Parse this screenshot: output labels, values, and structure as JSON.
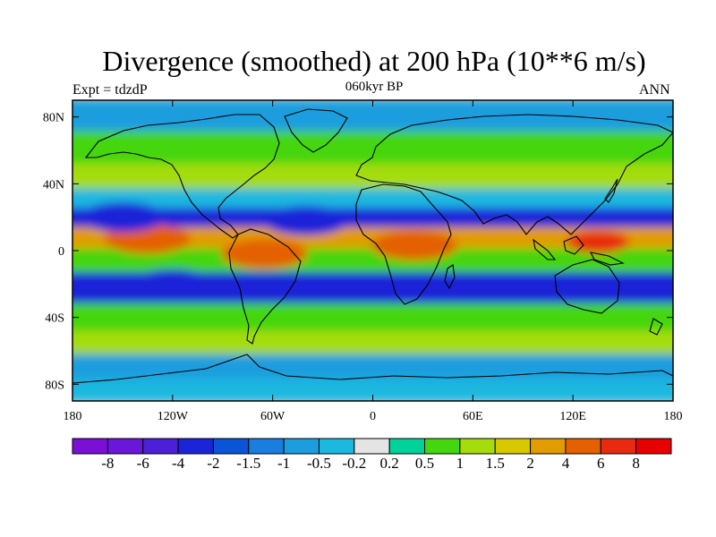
{
  "title": "Divergence (smoothed) at 200 hPa (10**6 m/s)",
  "subtitle_left": "Expt = tdzdP",
  "subtitle_center": "060kyr BP",
  "subtitle_right": "ANN",
  "x_ticks": [
    "180",
    "120W",
    "60W",
    "0",
    "60E",
    "120E",
    "180"
  ],
  "y_ticks": [
    "80N",
    "40N",
    "0",
    "40S",
    "80S"
  ],
  "colorbar": {
    "labels": [
      "-8",
      "-6",
      "-4",
      "-2",
      "-1.5",
      "-1",
      "-0.5",
      "-0.2",
      "0.2",
      "0.5",
      "1",
      "1.5",
      "2",
      "4",
      "6",
      "8"
    ],
    "colors": [
      "#7a0fd6",
      "#6a17d9",
      "#4b20d6",
      "#1c24d8",
      "#0a54d8",
      "#1a7ee0",
      "#1c9ede",
      "#1cb8e0",
      "#e4e4e4",
      "#00d29a",
      "#44d60e",
      "#a4dc0c",
      "#d8c800",
      "#e29c00",
      "#e46000",
      "#e82a10",
      "#e80000"
    ]
  },
  "chart_data": {
    "type": "heatmap",
    "title": "Divergence (smoothed) at 200 hPa (10**6 m/s)",
    "x_range": [
      -180,
      180
    ],
    "y_range": [
      -90,
      90
    ],
    "levels": [
      -8,
      -6,
      -4,
      -2,
      -1.5,
      -1,
      -0.5,
      -0.2,
      0.2,
      0.5,
      1,
      1.5,
      2,
      4,
      6,
      8
    ],
    "bands": [
      {
        "lat": 82,
        "value": -0.7
      },
      {
        "lat": 60,
        "value": 0.6
      },
      {
        "lat": 43,
        "value": 1.0
      },
      {
        "lat": 30,
        "value": -0.4
      },
      {
        "lat": 20,
        "value": -2.5
      },
      {
        "lat": 7,
        "value": 2.0
      },
      {
        "lat": -5,
        "value": 0.7
      },
      {
        "lat": -22,
        "value": -2.5
      },
      {
        "lat": -42,
        "value": 0.8
      },
      {
        "lat": -55,
        "value": 1.0
      },
      {
        "lat": -70,
        "value": -0.6
      },
      {
        "lat": -85,
        "value": -0.3
      }
    ],
    "features": [
      {
        "name": "maritime-continent-max",
        "lon": 135,
        "lat": 5,
        "value": 6
      },
      {
        "name": "amazon-max",
        "lon": -65,
        "lat": -2,
        "value": 4
      },
      {
        "name": "africa-max",
        "lon": 25,
        "lat": 3,
        "value": 4
      },
      {
        "name": "east-pacific-max",
        "lon": -135,
        "lat": 7,
        "value": 4
      },
      {
        "name": "south-atlantic-min",
        "lon": -25,
        "lat": -22,
        "value": -4
      },
      {
        "name": "south-pacific-min",
        "lon": -120,
        "lat": -20,
        "value": -4
      },
      {
        "name": "north-pacific-min",
        "lon": -150,
        "lat": 20,
        "value": -4
      },
      {
        "name": "indian-ocean-min",
        "lon": 75,
        "lat": -22,
        "value": -4
      },
      {
        "name": "north-atlantic-min",
        "lon": -40,
        "lat": 18,
        "value": -4
      }
    ]
  }
}
